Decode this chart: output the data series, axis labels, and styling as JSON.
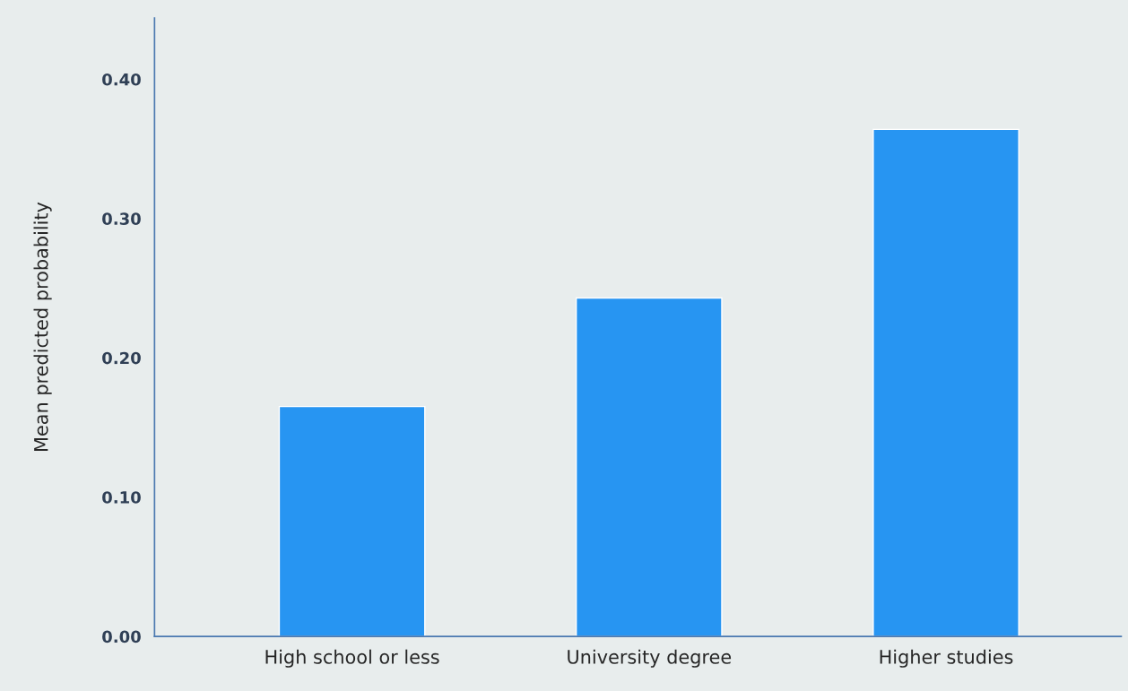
{
  "chart_data": {
    "type": "bar",
    "ylabel": "Mean predicted probability",
    "categories": [
      "High school or less",
      "University degree",
      "Higher studies"
    ],
    "values": [
      0.165,
      0.243,
      0.364
    ],
    "color": "#2795f2",
    "ylim": [
      0,
      0.444
    ],
    "yticks": [
      {
        "value": 0,
        "label": "0.00"
      },
      {
        "value": 0.1,
        "label": "0.10"
      },
      {
        "value": 0.2,
        "label": "0.20"
      },
      {
        "value": 0.3,
        "label": "0.30"
      },
      {
        "value": 0.4,
        "label": "0.40"
      }
    ],
    "grid": false,
    "legend": false
  }
}
